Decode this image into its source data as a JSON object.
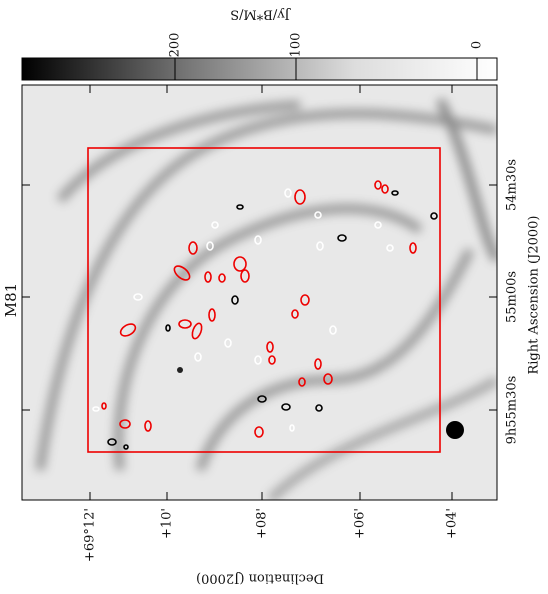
{
  "title": "M81",
  "colorbar": {
    "label": "Jy/B*M/S",
    "ticks": [
      "200",
      "100",
      "0"
    ]
  },
  "axes": {
    "x_label": "Declination (J2000)",
    "y_label": "Right Ascension (J2000)",
    "x_ticks": [
      "+69°12'",
      "+10'",
      "+08'",
      "+06'",
      "+04'"
    ],
    "y_ticks": [
      "54m30s",
      "55m00s",
      "9h55m30s"
    ]
  }
}
